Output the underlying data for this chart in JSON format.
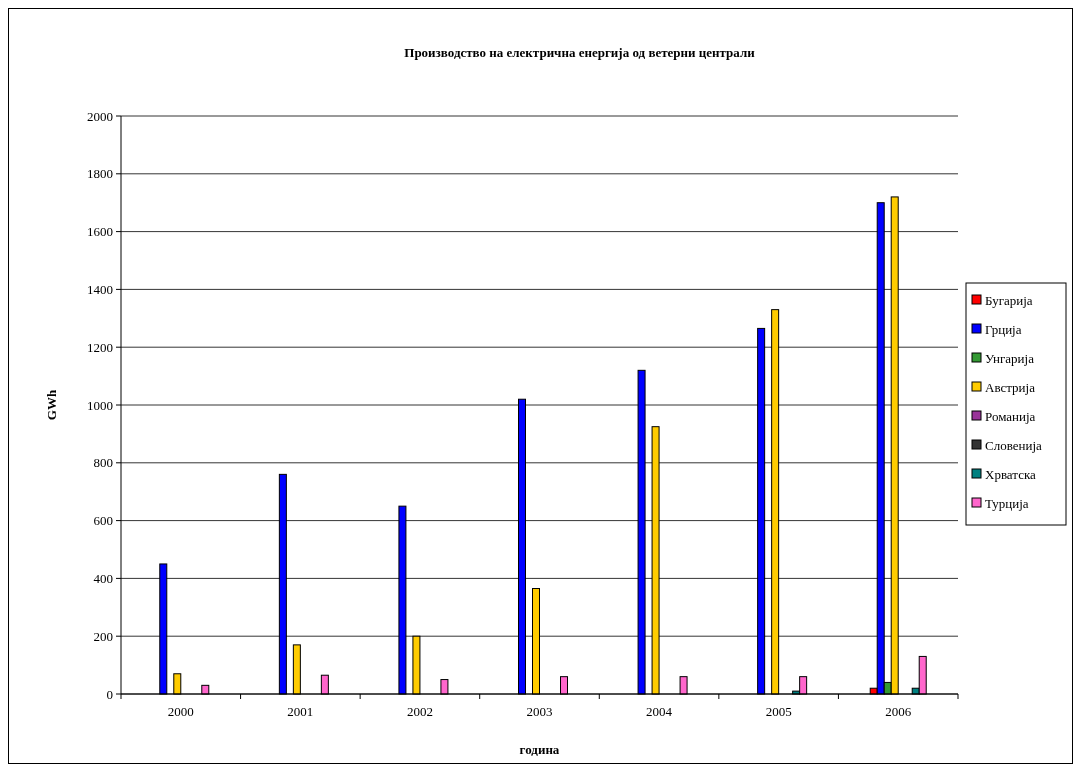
{
  "chart_data": {
    "type": "bar",
    "title": "Производство на електрична енергија од ветерни централи",
    "xlabel": "година",
    "ylabel": "GWh",
    "categories": [
      "2000",
      "2001",
      "2002",
      "2003",
      "2004",
      "2005",
      "2006"
    ],
    "series": [
      {
        "name": "Бугарија",
        "color": "#ff0000",
        "values": [
          null,
          null,
          null,
          null,
          null,
          null,
          20
        ]
      },
      {
        "name": "Грција",
        "color": "#0000ff",
        "values": [
          450,
          760,
          650,
          1020,
          1120,
          1265,
          1700
        ]
      },
      {
        "name": "Унгарија",
        "color": "#339933",
        "values": [
          null,
          null,
          null,
          null,
          null,
          null,
          40
        ]
      },
      {
        "name": "Австрија",
        "color": "#ffcc00",
        "values": [
          70,
          170,
          200,
          365,
          925,
          1330,
          1720
        ]
      },
      {
        "name": "Романија",
        "color": "#993399",
        "values": [
          null,
          null,
          null,
          null,
          null,
          null,
          null
        ]
      },
      {
        "name": "Словенија",
        "color": "#333333",
        "values": [
          null,
          null,
          null,
          null,
          null,
          null,
          null
        ]
      },
      {
        "name": "Хрватска",
        "color": "#008080",
        "values": [
          null,
          null,
          null,
          null,
          null,
          10,
          20
        ]
      },
      {
        "name": "Турција",
        "color": "#ff66cc",
        "values": [
          30,
          65,
          50,
          60,
          60,
          60,
          130
        ]
      }
    ],
    "ylim": [
      0,
      2000
    ],
    "yticks": [
      0,
      200,
      400,
      600,
      800,
      1000,
      1200,
      1400,
      1600,
      1800,
      2000
    ],
    "grid": "y",
    "legend": "right"
  }
}
